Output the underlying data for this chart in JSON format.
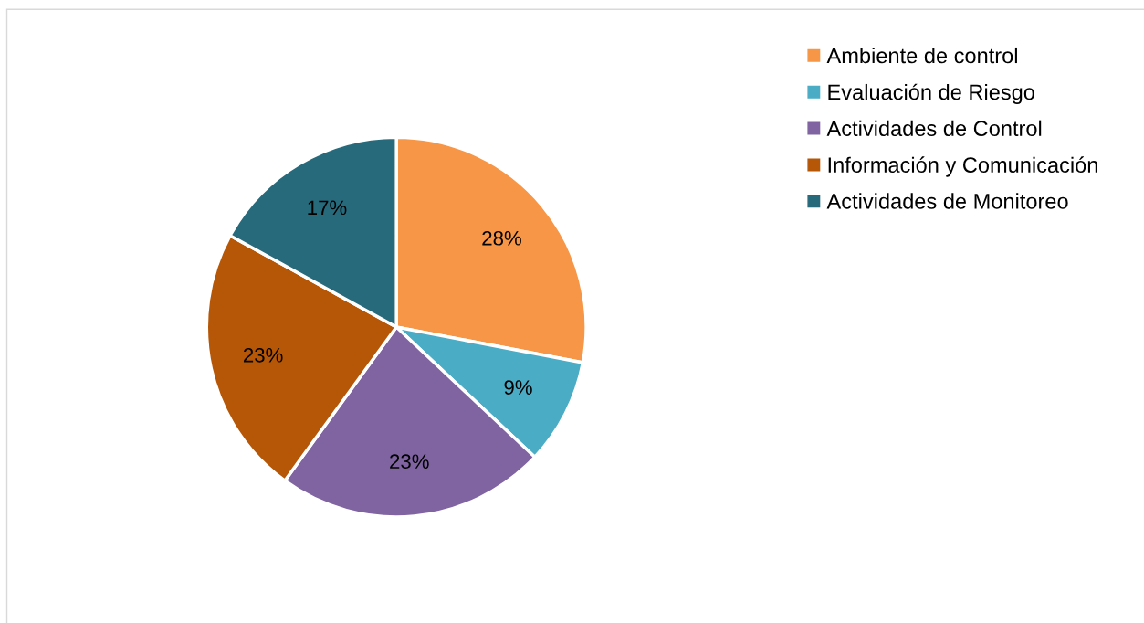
{
  "chart_data": {
    "type": "pie",
    "categories": [
      "Ambiente de control",
      "Evaluación de Riesgo",
      "Actividades de Control",
      "Información y Comunicación",
      "Actividades de Monitoreo"
    ],
    "values": [
      28,
      9,
      23,
      23,
      17
    ],
    "colors": [
      "#f79646",
      "#4bacc6",
      "#8064a2",
      "#b65708",
      "#276a7c"
    ],
    "value_labels": [
      "28%",
      "9%",
      "23%",
      "23%",
      "17%"
    ],
    "legend": "top right"
  }
}
